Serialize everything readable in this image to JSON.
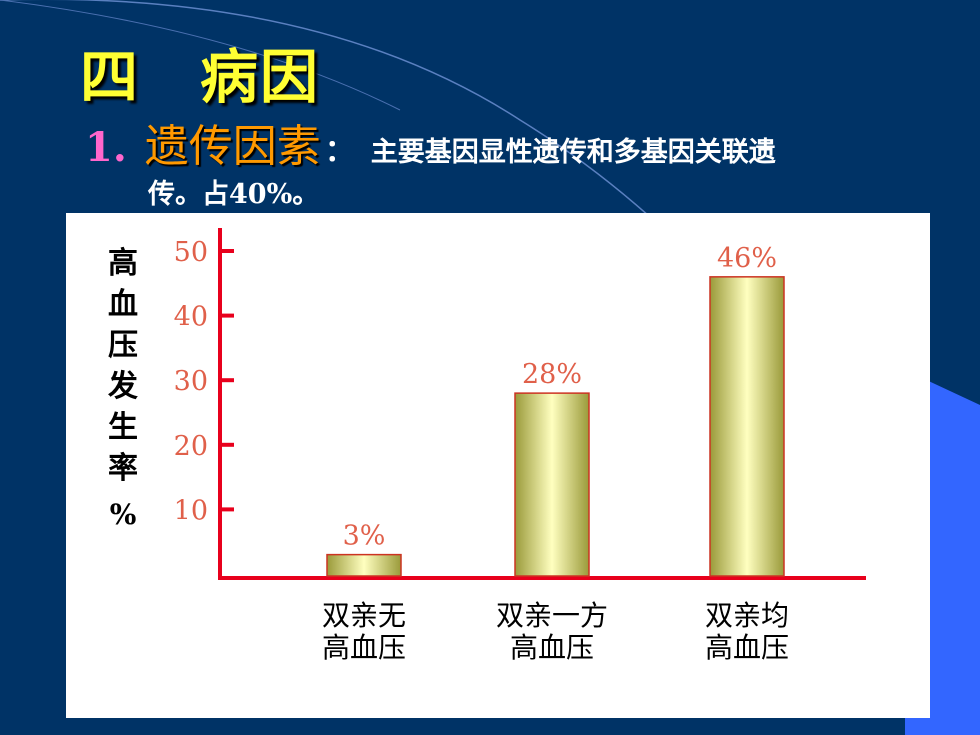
{
  "slide": {
    "heading_num": "四",
    "heading_word": "病因",
    "sub_num": "1.",
    "sub_title": "遗传因素",
    "sub_colon": "：",
    "sub_text_line1": "主要基因显性遗传和多基因关联遗",
    "sub_text_line2": "传。占40%。"
  },
  "colors": {
    "background": "#003366",
    "heading": "#ffff33",
    "sub_title": "#ff9900",
    "sub_num": "#ff66cc",
    "axis": "#e8001c",
    "bar_light": "#ffffc0",
    "bar_dark": "#9a9a3a",
    "label_red": "#e0604a"
  },
  "chart_data": {
    "type": "bar",
    "ylabel_chars": [
      "高",
      "血",
      "压",
      "发",
      "生",
      "率"
    ],
    "ylabel_unit": "%",
    "yticks": [
      10,
      20,
      30,
      40,
      50
    ],
    "ylim": [
      0,
      50
    ],
    "categories": [
      [
        "双亲无",
        "高血压"
      ],
      [
        "双亲一方",
        "高血压"
      ],
      [
        "双亲均",
        "高血压"
      ]
    ],
    "values": [
      3,
      28,
      46
    ],
    "data_labels": [
      "3%",
      "28%",
      "46%"
    ],
    "grid": false,
    "legend": "none"
  }
}
